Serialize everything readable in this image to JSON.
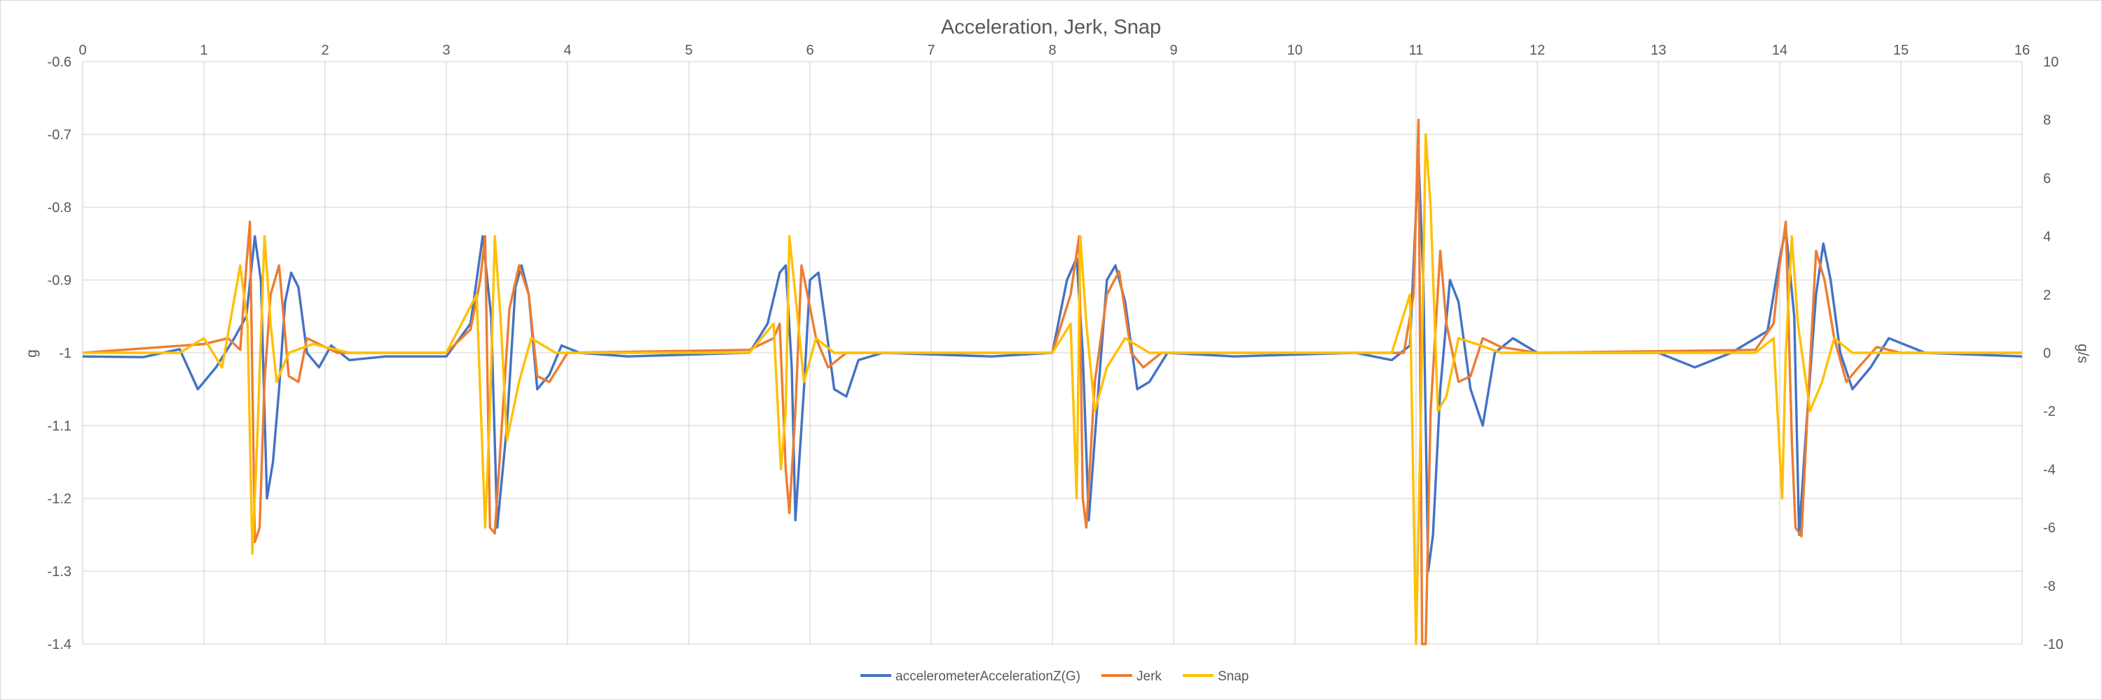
{
  "chart_data": {
    "type": "line",
    "title": "Acceleration, Jerk, Snap",
    "ylabel": "g",
    "y2label": "g/s",
    "xlim": [
      0,
      16
    ],
    "ylim": [
      -1.4,
      -0.6
    ],
    "y2lim": [
      -10,
      10
    ],
    "x_ticks": [
      "0",
      "1",
      "2",
      "3",
      "4",
      "5",
      "6",
      "7",
      "8",
      "9",
      "10",
      "11",
      "12",
      "13",
      "14",
      "15",
      "16"
    ],
    "y_ticks": [
      "-0.6",
      "-0.7",
      "-0.8",
      "-0.9",
      "-1",
      "-1.1",
      "-1.2",
      "-1.3",
      "-1.4"
    ],
    "y2_ticks": [
      "10",
      "8",
      "6",
      "4",
      "2",
      "0",
      "-2",
      "-4",
      "-6",
      "-8",
      "-10"
    ],
    "grid": true,
    "legend_position": "bottom",
    "series": [
      {
        "name": "accelerometerAccelerationZ(G)",
        "axis": "left",
        "color": "#4472c4",
        "points": [
          [
            0,
            -1.005
          ],
          [
            0.5,
            -1.006
          ],
          [
            0.8,
            -0.995
          ],
          [
            0.95,
            -1.05
          ],
          [
            1.1,
            -1.02
          ],
          [
            1.25,
            -0.98
          ],
          [
            1.35,
            -0.95
          ],
          [
            1.42,
            -0.84
          ],
          [
            1.47,
            -0.9
          ],
          [
            1.52,
            -1.2
          ],
          [
            1.57,
            -1.15
          ],
          [
            1.62,
            -1.05
          ],
          [
            1.67,
            -0.93
          ],
          [
            1.72,
            -0.89
          ],
          [
            1.78,
            -0.91
          ],
          [
            1.85,
            -1.0
          ],
          [
            1.95,
            -1.02
          ],
          [
            2.05,
            -0.99
          ],
          [
            2.2,
            -1.01
          ],
          [
            2.5,
            -1.005
          ],
          [
            3.0,
            -1.005
          ],
          [
            3.2,
            -0.96
          ],
          [
            3.3,
            -0.84
          ],
          [
            3.37,
            -0.95
          ],
          [
            3.42,
            -1.24
          ],
          [
            3.5,
            -1.1
          ],
          [
            3.57,
            -0.91
          ],
          [
            3.62,
            -0.88
          ],
          [
            3.68,
            -0.92
          ],
          [
            3.75,
            -1.05
          ],
          [
            3.85,
            -1.03
          ],
          [
            3.95,
            -0.99
          ],
          [
            4.1,
            -1.0
          ],
          [
            4.5,
            -1.005
          ],
          [
            5.5,
            -1.0
          ],
          [
            5.65,
            -0.96
          ],
          [
            5.75,
            -0.89
          ],
          [
            5.8,
            -0.88
          ],
          [
            5.85,
            -1.02
          ],
          [
            5.88,
            -1.23
          ],
          [
            5.95,
            -1.05
          ],
          [
            6.0,
            -0.9
          ],
          [
            6.07,
            -0.89
          ],
          [
            6.12,
            -0.95
          ],
          [
            6.2,
            -1.05
          ],
          [
            6.3,
            -1.06
          ],
          [
            6.4,
            -1.01
          ],
          [
            6.6,
            -1.0
          ],
          [
            7.5,
            -1.005
          ],
          [
            8.0,
            -1.0
          ],
          [
            8.12,
            -0.9
          ],
          [
            8.2,
            -0.87
          ],
          [
            8.25,
            -1.0
          ],
          [
            8.3,
            -1.23
          ],
          [
            8.38,
            -1.05
          ],
          [
            8.45,
            -0.9
          ],
          [
            8.52,
            -0.88
          ],
          [
            8.6,
            -0.93
          ],
          [
            8.7,
            -1.05
          ],
          [
            8.8,
            -1.04
          ],
          [
            8.95,
            -1.0
          ],
          [
            9.5,
            -1.005
          ],
          [
            10.5,
            -1.0
          ],
          [
            10.8,
            -1.01
          ],
          [
            10.95,
            -0.99
          ],
          [
            11.02,
            -0.73
          ],
          [
            11.06,
            -0.9
          ],
          [
            11.1,
            -1.3
          ],
          [
            11.14,
            -1.25
          ],
          [
            11.2,
            -1.05
          ],
          [
            11.28,
            -0.9
          ],
          [
            11.35,
            -0.93
          ],
          [
            11.45,
            -1.05
          ],
          [
            11.55,
            -1.1
          ],
          [
            11.65,
            -1.0
          ],
          [
            11.8,
            -0.98
          ],
          [
            12.0,
            -1.0
          ],
          [
            12.5,
            -1.0
          ],
          [
            13.0,
            -1.0
          ],
          [
            13.3,
            -1.02
          ],
          [
            13.6,
            -1.0
          ],
          [
            13.9,
            -0.97
          ],
          [
            14.0,
            -0.87
          ],
          [
            14.05,
            -0.83
          ],
          [
            14.12,
            -0.95
          ],
          [
            14.16,
            -1.25
          ],
          [
            14.22,
            -1.1
          ],
          [
            14.3,
            -0.92
          ],
          [
            14.36,
            -0.85
          ],
          [
            14.42,
            -0.9
          ],
          [
            14.5,
            -1.0
          ],
          [
            14.6,
            -1.05
          ],
          [
            14.75,
            -1.02
          ],
          [
            14.9,
            -0.98
          ],
          [
            15.2,
            -1.0
          ],
          [
            16.0,
            -1.005
          ]
        ]
      },
      {
        "name": "Jerk",
        "axis": "right",
        "color": "#ed7d31",
        "points": [
          [
            0,
            0
          ],
          [
            1.0,
            0.3
          ],
          [
            1.2,
            0.5
          ],
          [
            1.3,
            0.1
          ],
          [
            1.35,
            3.0
          ],
          [
            1.38,
            4.5
          ],
          [
            1.42,
            -6.5
          ],
          [
            1.46,
            -6.0
          ],
          [
            1.5,
            -1.0
          ],
          [
            1.55,
            2.0
          ],
          [
            1.62,
            3.0
          ],
          [
            1.7,
            -0.8
          ],
          [
            1.78,
            -1.0
          ],
          [
            1.85,
            0.5
          ],
          [
            1.95,
            0.3
          ],
          [
            2.1,
            0.0
          ],
          [
            3.0,
            0.0
          ],
          [
            3.2,
            0.8
          ],
          [
            3.28,
            2.5
          ],
          [
            3.32,
            4.0
          ],
          [
            3.36,
            -6.0
          ],
          [
            3.4,
            -6.2
          ],
          [
            3.45,
            -3.0
          ],
          [
            3.52,
            1.5
          ],
          [
            3.6,
            3.0
          ],
          [
            3.68,
            2.0
          ],
          [
            3.75,
            -0.8
          ],
          [
            3.85,
            -1.0
          ],
          [
            4.0,
            0.0
          ],
          [
            5.5,
            0.1
          ],
          [
            5.7,
            0.5
          ],
          [
            5.75,
            1.0
          ],
          [
            5.8,
            -4.0
          ],
          [
            5.83,
            -5.5
          ],
          [
            5.88,
            -2.0
          ],
          [
            5.93,
            3.0
          ],
          [
            5.98,
            2.0
          ],
          [
            6.05,
            0.5
          ],
          [
            6.15,
            -0.5
          ],
          [
            6.3,
            0.0
          ],
          [
            8.0,
            0.0
          ],
          [
            8.15,
            2.0
          ],
          [
            8.22,
            4.0
          ],
          [
            8.25,
            -5.0
          ],
          [
            8.28,
            -6.0
          ],
          [
            8.35,
            -1.0
          ],
          [
            8.45,
            2.0
          ],
          [
            8.55,
            2.8
          ],
          [
            8.65,
            0.0
          ],
          [
            8.75,
            -0.5
          ],
          [
            8.9,
            0.0
          ],
          [
            10.9,
            0.0
          ],
          [
            10.98,
            2.0
          ],
          [
            11.02,
            8.0
          ],
          [
            11.05,
            -10.0
          ],
          [
            11.08,
            -10.0
          ],
          [
            11.12,
            -2.0
          ],
          [
            11.2,
            3.5
          ],
          [
            11.25,
            1.0
          ],
          [
            11.35,
            -1.0
          ],
          [
            11.45,
            -0.8
          ],
          [
            11.55,
            0.5
          ],
          [
            11.7,
            0.2
          ],
          [
            12.0,
            0.0
          ],
          [
            13.8,
            0.1
          ],
          [
            13.95,
            1.0
          ],
          [
            14.0,
            3.0
          ],
          [
            14.05,
            4.5
          ],
          [
            14.1,
            -3.0
          ],
          [
            14.13,
            -6.0
          ],
          [
            14.18,
            -6.3
          ],
          [
            14.23,
            -2.0
          ],
          [
            14.3,
            3.5
          ],
          [
            14.37,
            2.5
          ],
          [
            14.45,
            0.5
          ],
          [
            14.55,
            -1.0
          ],
          [
            14.65,
            -0.5
          ],
          [
            14.8,
            0.2
          ],
          [
            15.0,
            0.0
          ],
          [
            16.0,
            0.0
          ]
        ]
      },
      {
        "name": "Snap",
        "axis": "right",
        "color": "#ffc000",
        "points": [
          [
            0,
            0
          ],
          [
            0.8,
            0.0
          ],
          [
            1.0,
            0.5
          ],
          [
            1.15,
            -0.5
          ],
          [
            1.3,
            3.0
          ],
          [
            1.36,
            1.0
          ],
          [
            1.4,
            -6.9
          ],
          [
            1.44,
            -3.0
          ],
          [
            1.5,
            4.0
          ],
          [
            1.55,
            1.0
          ],
          [
            1.6,
            -1.0
          ],
          [
            1.7,
            0.0
          ],
          [
            1.9,
            0.3
          ],
          [
            2.2,
            0.0
          ],
          [
            3.0,
            0.0
          ],
          [
            3.25,
            2.0
          ],
          [
            3.32,
            -6.0
          ],
          [
            3.36,
            -2.0
          ],
          [
            3.4,
            4.0
          ],
          [
            3.45,
            1.0
          ],
          [
            3.5,
            -3.0
          ],
          [
            3.6,
            -1.0
          ],
          [
            3.7,
            0.5
          ],
          [
            3.9,
            0.0
          ],
          [
            5.5,
            0.0
          ],
          [
            5.7,
            1.0
          ],
          [
            5.76,
            -4.0
          ],
          [
            5.8,
            -2.0
          ],
          [
            5.83,
            4.0
          ],
          [
            5.88,
            2.0
          ],
          [
            5.95,
            -1.0
          ],
          [
            6.05,
            0.5
          ],
          [
            6.2,
            0.0
          ],
          [
            8.0,
            0.0
          ],
          [
            8.15,
            1.0
          ],
          [
            8.2,
            -5.0
          ],
          [
            8.23,
            4.0
          ],
          [
            8.28,
            1.0
          ],
          [
            8.35,
            -2.0
          ],
          [
            8.45,
            -0.5
          ],
          [
            8.6,
            0.5
          ],
          [
            8.8,
            0.0
          ],
          [
            10.8,
            0.0
          ],
          [
            10.95,
            2.0
          ],
          [
            11.0,
            -10.0
          ],
          [
            11.04,
            -2.0
          ],
          [
            11.08,
            7.5
          ],
          [
            11.12,
            5.0
          ],
          [
            11.18,
            -2.0
          ],
          [
            11.25,
            -1.5
          ],
          [
            11.35,
            0.5
          ],
          [
            11.5,
            0.3
          ],
          [
            11.7,
            0.0
          ],
          [
            13.8,
            0.0
          ],
          [
            13.95,
            0.5
          ],
          [
            14.02,
            -5.0
          ],
          [
            14.05,
            0.0
          ],
          [
            14.1,
            4.0
          ],
          [
            14.15,
            1.0
          ],
          [
            14.25,
            -2.0
          ],
          [
            14.35,
            -1.0
          ],
          [
            14.45,
            0.5
          ],
          [
            14.6,
            0.0
          ],
          [
            16.0,
            0.0
          ]
        ]
      }
    ]
  }
}
